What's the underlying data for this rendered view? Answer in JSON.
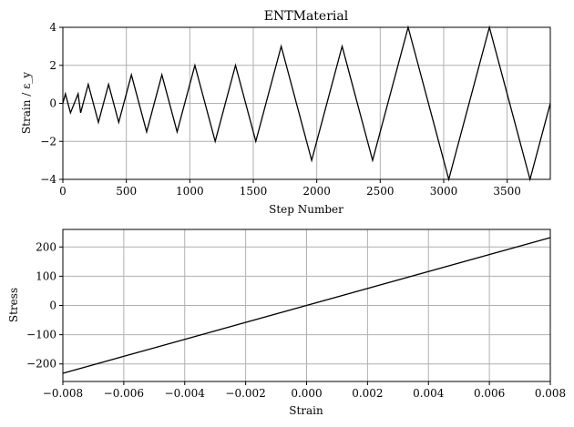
{
  "chart_data": [
    {
      "type": "line",
      "title": "ENTMaterial",
      "xlabel": "Step Number",
      "ylabel": "Strain / ε_y",
      "xlim": [
        0,
        3840
      ],
      "ylim": [
        -4,
        4
      ],
      "grid": true,
      "xticks": [
        0,
        500,
        1000,
        1500,
        2000,
        2500,
        3000,
        3500
      ],
      "yticks": [
        -4,
        -2,
        0,
        2,
        4
      ],
      "x": [
        0,
        20,
        60,
        120,
        140,
        200,
        280,
        360,
        440,
        540,
        660,
        780,
        900,
        1040,
        1200,
        1360,
        1520,
        1720,
        1960,
        2200,
        2440,
        2720,
        3040,
        3360,
        3680,
        3840
      ],
      "y": [
        0,
        0.5,
        -0.5,
        0.5,
        -0.5,
        1,
        -1,
        1,
        -1,
        1.5,
        -1.5,
        1.5,
        -1.5,
        2,
        -2,
        2,
        -2,
        3,
        -3,
        3,
        -3,
        4,
        -4,
        4,
        -4,
        0
      ]
    },
    {
      "type": "line",
      "title": "",
      "xlabel": "Strain",
      "ylabel": "Stress",
      "xlim": [
        -0.008,
        0.008
      ],
      "ylim": [
        -260,
        260
      ],
      "grid": true,
      "xticks": [
        -0.008,
        -0.006,
        -0.004,
        -0.002,
        0.0,
        0.002,
        0.004,
        0.006,
        0.008
      ],
      "xtick_labels": [
        "−0.008",
        "−0.006",
        "−0.004",
        "−0.002",
        "0.000",
        "0.002",
        "0.004",
        "0.006",
        "0.008"
      ],
      "yticks": [
        -200,
        -100,
        0,
        100,
        200
      ],
      "ytick_labels": [
        "−200",
        "−100",
        "0",
        "100",
        "200"
      ],
      "x": [
        -0.008,
        0.008
      ],
      "y": [
        -232,
        232
      ]
    }
  ]
}
